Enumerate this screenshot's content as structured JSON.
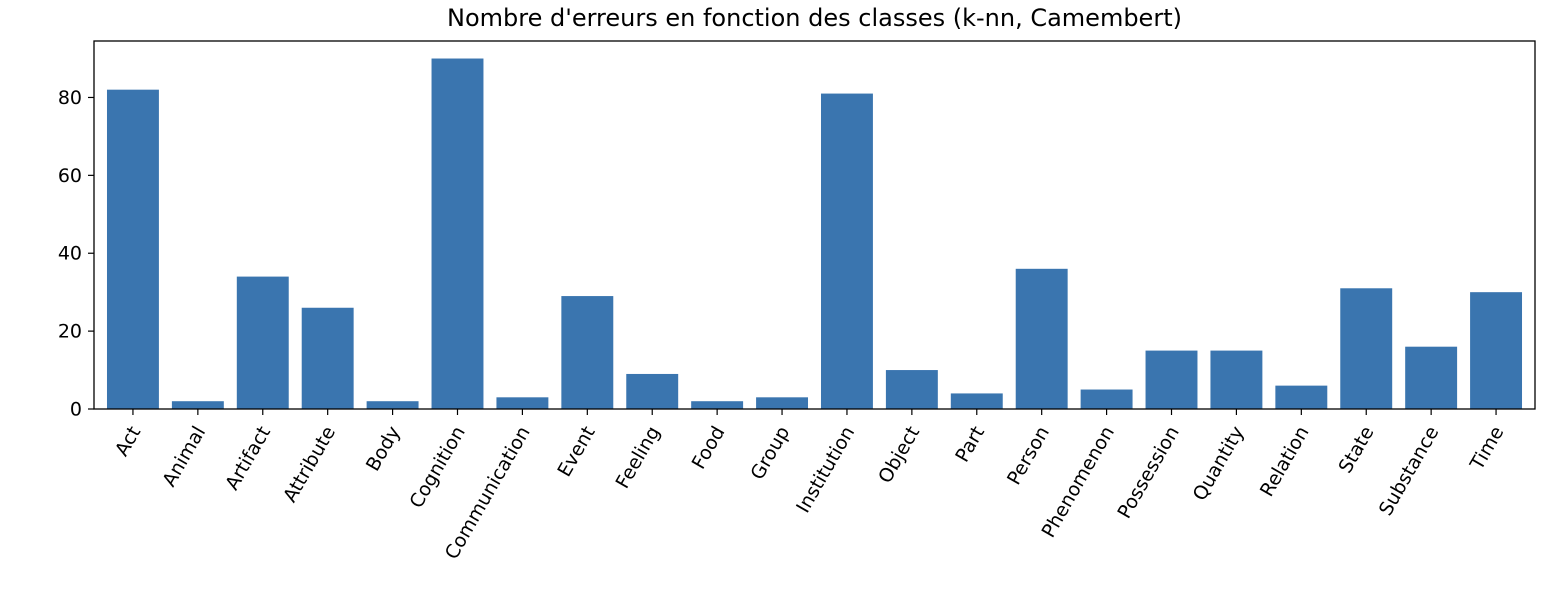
{
  "chart_data": {
    "type": "bar",
    "title": "Nombre d'erreurs en fonction des classes (k-nn, Camembert)",
    "xlabel": "",
    "ylabel": "",
    "categories": [
      "Act",
      "Animal",
      "Artifact",
      "Attribute",
      "Body",
      "Cognition",
      "Communication",
      "Event",
      "Feeling",
      "Food",
      "Group",
      "Institution",
      "Object",
      "Part",
      "Person",
      "Phenomenon",
      "Possession",
      "Quantity",
      "Relation",
      "State",
      "Substance",
      "Time"
    ],
    "values": [
      82,
      2,
      34,
      26,
      2,
      90,
      3,
      29,
      9,
      2,
      3,
      81,
      10,
      4,
      36,
      5,
      15,
      15,
      6,
      31,
      16,
      30
    ],
    "ylim": [
      0,
      94.5
    ],
    "yticks": [
      0,
      20,
      40,
      60,
      80
    ],
    "bar_color": "#3a75af",
    "grid": false,
    "legend": "none"
  }
}
